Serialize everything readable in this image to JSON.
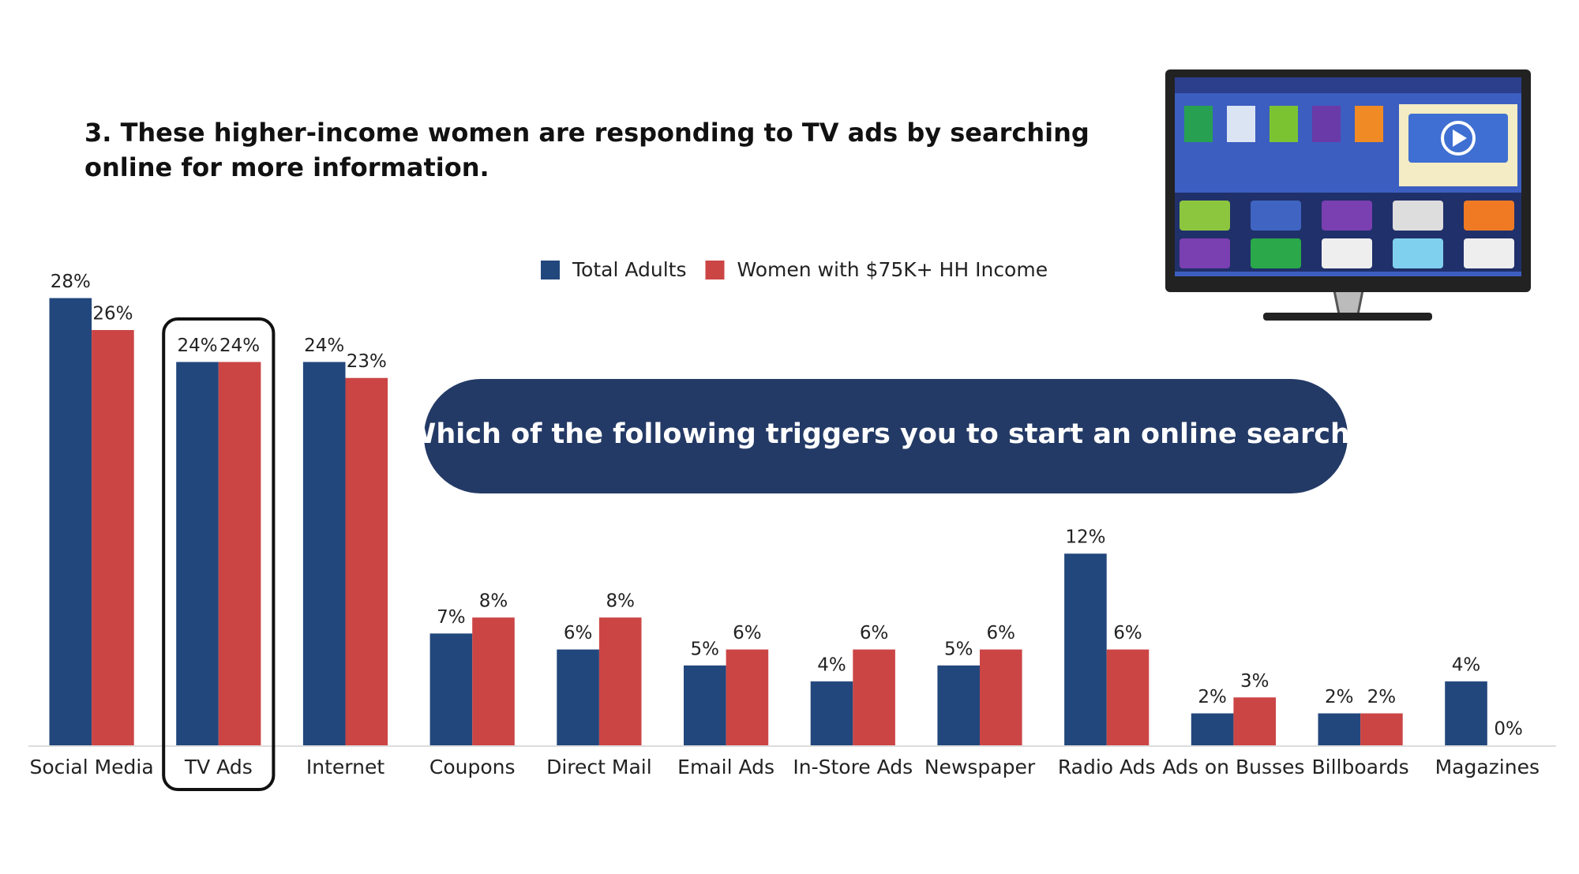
{
  "chart_data": {
    "type": "bar",
    "title": "3. These higher-income women are responding to TV ads by searching online for more information.",
    "annotation": "Which of the following triggers you to start an online search?",
    "categories": [
      "Social Media",
      "TV Ads",
      "Internet",
      "Coupons",
      "Direct Mail",
      "Email Ads",
      "In-Store Ads",
      "Newspaper",
      "Radio Ads",
      "Ads on Busses",
      "Billboards",
      "Magazines"
    ],
    "series": [
      {
        "name": "Total Adults",
        "color": "#22477c",
        "values": [
          28,
          24,
          24,
          7,
          6,
          5,
          4,
          5,
          12,
          2,
          2,
          4
        ],
        "value_labels": [
          "28%",
          "24%",
          "24%",
          "7%",
          "6%",
          "5%",
          "4%",
          "5%",
          "12%",
          "2%",
          "2%",
          "4%"
        ]
      },
      {
        "name": "Women with $75K+ HH Income",
        "color": "#cc4545",
        "values": [
          26,
          24,
          23,
          8,
          8,
          6,
          6,
          6,
          6,
          3,
          2,
          0
        ],
        "value_labels": [
          "26%",
          "24%",
          "23%",
          "8%",
          "8%",
          "6%",
          "6%",
          "6%",
          "6%",
          "3%",
          "2%",
          "0%"
        ]
      }
    ],
    "highlight": "TV Ads"
  }
}
